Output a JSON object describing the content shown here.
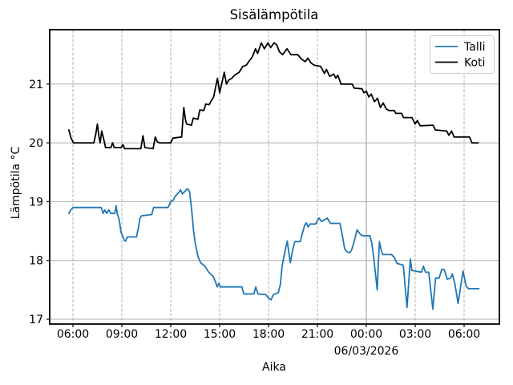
{
  "window": {
    "background": "#ffffff"
  },
  "chart_data": {
    "type": "line",
    "title": "Sisälämpötila",
    "xlabel": "Aika",
    "ylabel": "Lämpötila °C",
    "x_date_label": "06/03/2026",
    "x_unit": "minutes since midnight 05/03 (values >1440 are on 06/03/2026)",
    "xlim_minutes": [
      274,
      1930
    ],
    "ylim": [
      16.93,
      21.93
    ],
    "y_ticks": [
      17,
      18,
      19,
      20,
      21
    ],
    "x_ticks": [
      {
        "minute": 360,
        "label": "06:00",
        "major": false
      },
      {
        "minute": 540,
        "label": "09:00",
        "major": false
      },
      {
        "minute": 720,
        "label": "12:00",
        "major": false
      },
      {
        "minute": 900,
        "label": "15:00",
        "major": false
      },
      {
        "minute": 1080,
        "label": "18:00",
        "major": false
      },
      {
        "minute": 1260,
        "label": "21:00",
        "major": false
      },
      {
        "minute": 1440,
        "label": "00:00",
        "major": true
      },
      {
        "minute": 1620,
        "label": "03:00",
        "major": false
      },
      {
        "minute": 1800,
        "label": "06:00",
        "major": false
      }
    ],
    "grid": true,
    "legend_position": "upper right",
    "series": [
      {
        "name": "Talli",
        "color": "#1f77b4",
        "points": [
          [
            345,
            18.8
          ],
          [
            352,
            18.86
          ],
          [
            360,
            18.9
          ],
          [
            464,
            18.9
          ],
          [
            471,
            18.8
          ],
          [
            477,
            18.86
          ],
          [
            484,
            18.8
          ],
          [
            492,
            18.86
          ],
          [
            499,
            18.8
          ],
          [
            514,
            18.8
          ],
          [
            519,
            18.93
          ],
          [
            523,
            18.8
          ],
          [
            530,
            18.7
          ],
          [
            537,
            18.48
          ],
          [
            544,
            18.4
          ],
          [
            549,
            18.34
          ],
          [
            554,
            18.33
          ],
          [
            560,
            18.4
          ],
          [
            594,
            18.4
          ],
          [
            601,
            18.56
          ],
          [
            607,
            18.72
          ],
          [
            613,
            18.76
          ],
          [
            650,
            18.78
          ],
          [
            657,
            18.9
          ],
          [
            710,
            18.9
          ],
          [
            720,
            19.0
          ],
          [
            728,
            19.02
          ],
          [
            738,
            19.1
          ],
          [
            750,
            19.16
          ],
          [
            756,
            19.2
          ],
          [
            763,
            19.13
          ],
          [
            771,
            19.17
          ],
          [
            781,
            19.22
          ],
          [
            789,
            19.18
          ],
          [
            796,
            18.9
          ],
          [
            804,
            18.5
          ],
          [
            811,
            18.28
          ],
          [
            820,
            18.07
          ],
          [
            830,
            17.96
          ],
          [
            846,
            17.9
          ],
          [
            860,
            17.8
          ],
          [
            876,
            17.73
          ],
          [
            886,
            17.62
          ],
          [
            891,
            17.55
          ],
          [
            897,
            17.61
          ],
          [
            903,
            17.55
          ],
          [
            982,
            17.55
          ],
          [
            989,
            17.43
          ],
          [
            1026,
            17.43
          ],
          [
            1033,
            17.55
          ],
          [
            1041,
            17.43
          ],
          [
            1070,
            17.42
          ],
          [
            1080,
            17.36
          ],
          [
            1089,
            17.33
          ],
          [
            1098,
            17.42
          ],
          [
            1116,
            17.45
          ],
          [
            1124,
            17.6
          ],
          [
            1130,
            17.9
          ],
          [
            1139,
            18.12
          ],
          [
            1149,
            18.33
          ],
          [
            1160,
            17.96
          ],
          [
            1170,
            18.2
          ],
          [
            1177,
            18.32
          ],
          [
            1197,
            18.32
          ],
          [
            1204,
            18.45
          ],
          [
            1213,
            18.6
          ],
          [
            1219,
            18.64
          ],
          [
            1226,
            18.57
          ],
          [
            1233,
            18.62
          ],
          [
            1253,
            18.62
          ],
          [
            1266,
            18.72
          ],
          [
            1276,
            18.66
          ],
          [
            1296,
            18.72
          ],
          [
            1308,
            18.63
          ],
          [
            1343,
            18.63
          ],
          [
            1352,
            18.42
          ],
          [
            1360,
            18.2
          ],
          [
            1368,
            18.15
          ],
          [
            1378,
            18.13
          ],
          [
            1386,
            18.18
          ],
          [
            1394,
            18.3
          ],
          [
            1406,
            18.52
          ],
          [
            1417,
            18.45
          ],
          [
            1426,
            18.42
          ],
          [
            1453,
            18.42
          ],
          [
            1460,
            18.3
          ],
          [
            1467,
            18.05
          ],
          [
            1480,
            17.5
          ],
          [
            1488,
            18.32
          ],
          [
            1496,
            18.15
          ],
          [
            1501,
            18.1
          ],
          [
            1533,
            18.1
          ],
          [
            1543,
            18.05
          ],
          [
            1553,
            17.95
          ],
          [
            1576,
            17.92
          ],
          [
            1590,
            17.2
          ],
          [
            1602,
            18.02
          ],
          [
            1608,
            17.83
          ],
          [
            1643,
            17.8
          ],
          [
            1650,
            17.9
          ],
          [
            1658,
            17.8
          ],
          [
            1670,
            17.8
          ],
          [
            1685,
            17.17
          ],
          [
            1695,
            17.7
          ],
          [
            1708,
            17.7
          ],
          [
            1718,
            17.85
          ],
          [
            1727,
            17.84
          ],
          [
            1738,
            17.68
          ],
          [
            1750,
            17.7
          ],
          [
            1757,
            17.77
          ],
          [
            1766,
            17.6
          ],
          [
            1778,
            17.27
          ],
          [
            1796,
            17.82
          ],
          [
            1808,
            17.56
          ],
          [
            1816,
            17.52
          ],
          [
            1855,
            17.52
          ]
        ]
      },
      {
        "name": "Koti",
        "color": "#000000",
        "points": [
          [
            345,
            20.22
          ],
          [
            353,
            20.08
          ],
          [
            362,
            20.0
          ],
          [
            437,
            20.0
          ],
          [
            444,
            20.15
          ],
          [
            450,
            20.32
          ],
          [
            456,
            20.1
          ],
          [
            460,
            20.0
          ],
          [
            466,
            20.2
          ],
          [
            474,
            20.05
          ],
          [
            480,
            19.92
          ],
          [
            500,
            19.92
          ],
          [
            506,
            20.0
          ],
          [
            512,
            19.92
          ],
          [
            538,
            19.92
          ],
          [
            544,
            19.97
          ],
          [
            550,
            19.9
          ],
          [
            610,
            19.9
          ],
          [
            618,
            20.12
          ],
          [
            625,
            19.92
          ],
          [
            655,
            19.9
          ],
          [
            663,
            20.1
          ],
          [
            670,
            20.02
          ],
          [
            678,
            20.0
          ],
          [
            720,
            20.0
          ],
          [
            728,
            20.08
          ],
          [
            760,
            20.1
          ],
          [
            768,
            20.6
          ],
          [
            774,
            20.4
          ],
          [
            778,
            20.32
          ],
          [
            796,
            20.3
          ],
          [
            803,
            20.42
          ],
          [
            820,
            20.4
          ],
          [
            827,
            20.56
          ],
          [
            842,
            20.55
          ],
          [
            849,
            20.66
          ],
          [
            861,
            20.65
          ],
          [
            870,
            20.72
          ],
          [
            878,
            20.78
          ],
          [
            892,
            21.1
          ],
          [
            900,
            20.85
          ],
          [
            917,
            21.2
          ],
          [
            925,
            21.0
          ],
          [
            934,
            21.07
          ],
          [
            945,
            21.1
          ],
          [
            955,
            21.15
          ],
          [
            972,
            21.2
          ],
          [
            985,
            21.3
          ],
          [
            998,
            21.32
          ],
          [
            1010,
            21.4
          ],
          [
            1020,
            21.46
          ],
          [
            1032,
            21.6
          ],
          [
            1040,
            21.52
          ],
          [
            1053,
            21.7
          ],
          [
            1065,
            21.6
          ],
          [
            1078,
            21.7
          ],
          [
            1088,
            21.62
          ],
          [
            1100,
            21.7
          ],
          [
            1110,
            21.67
          ],
          [
            1120,
            21.55
          ],
          [
            1132,
            21.5
          ],
          [
            1148,
            21.6
          ],
          [
            1163,
            21.5
          ],
          [
            1188,
            21.5
          ],
          [
            1200,
            21.43
          ],
          [
            1215,
            21.38
          ],
          [
            1225,
            21.44
          ],
          [
            1236,
            21.36
          ],
          [
            1248,
            21.32
          ],
          [
            1272,
            21.3
          ],
          [
            1286,
            21.18
          ],
          [
            1293,
            21.25
          ],
          [
            1305,
            21.13
          ],
          [
            1320,
            21.17
          ],
          [
            1328,
            21.1
          ],
          [
            1335,
            21.15
          ],
          [
            1347,
            21.0
          ],
          [
            1388,
            21.0
          ],
          [
            1395,
            20.93
          ],
          [
            1424,
            20.92
          ],
          [
            1431,
            20.85
          ],
          [
            1440,
            20.88
          ],
          [
            1449,
            20.78
          ],
          [
            1458,
            20.83
          ],
          [
            1470,
            20.7
          ],
          [
            1481,
            20.76
          ],
          [
            1492,
            20.6
          ],
          [
            1502,
            20.68
          ],
          [
            1513,
            20.58
          ],
          [
            1523,
            20.55
          ],
          [
            1543,
            20.55
          ],
          [
            1549,
            20.5
          ],
          [
            1570,
            20.5
          ],
          [
            1577,
            20.43
          ],
          [
            1608,
            20.43
          ],
          [
            1620,
            20.32
          ],
          [
            1628,
            20.38
          ],
          [
            1638,
            20.29
          ],
          [
            1686,
            20.3
          ],
          [
            1694,
            20.22
          ],
          [
            1736,
            20.2
          ],
          [
            1744,
            20.13
          ],
          [
            1754,
            20.2
          ],
          [
            1763,
            20.1
          ],
          [
            1820,
            20.1
          ],
          [
            1829,
            20.0
          ],
          [
            1852,
            20.0
          ]
        ]
      }
    ]
  },
  "legend": {
    "entries": [
      {
        "label": "Talli",
        "color": "#1f77b4"
      },
      {
        "label": "Koti",
        "color": "#000000"
      }
    ]
  },
  "colors": {
    "grid_minor": "#b0b0b0",
    "grid_major": "#999999",
    "spine": "#000000",
    "talli": "#1f77b4",
    "koti": "#000000"
  }
}
